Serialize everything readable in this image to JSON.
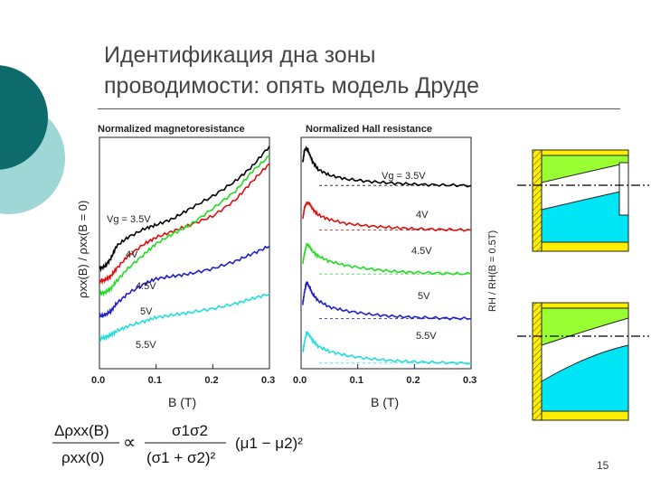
{
  "slide": {
    "title_line1": "Идентификация дна зоны",
    "title_line2": "проводимости: опять модель Друде",
    "page_number": "15"
  },
  "chart_data": [
    {
      "type": "line",
      "title": "Normalized magnetoresistance",
      "xlabel": "B (T)",
      "ylabel": "ρxx(B) / ρxx(B = 0)",
      "xlim": [
        0,
        0.3
      ],
      "xticks": [
        "0.0",
        "0.1",
        "0.2",
        "0.3"
      ],
      "series": [
        {
          "name": "Vg = 3.5V",
          "color": "#000000",
          "x": [
            0,
            0.01,
            0.02,
            0.03,
            0.05,
            0.08,
            0.1,
            0.13,
            0.16,
            0.2,
            0.24,
            0.27,
            0.3
          ],
          "y": [
            0.8,
            0.82,
            0.88,
            0.98,
            1.05,
            1.12,
            1.15,
            1.2,
            1.28,
            1.38,
            1.5,
            1.62,
            1.78
          ]
        },
        {
          "name": "4V",
          "color": "#e01010",
          "x": [
            0,
            0.01,
            0.02,
            0.03,
            0.05,
            0.08,
            0.1,
            0.13,
            0.16,
            0.2,
            0.24,
            0.27,
            0.3
          ],
          "y": [
            0.7,
            0.71,
            0.74,
            0.8,
            0.9,
            1.0,
            1.05,
            1.1,
            1.15,
            1.22,
            1.35,
            1.5,
            1.64
          ]
        },
        {
          "name": "4.5V",
          "color": "#22dd22",
          "x": [
            0,
            0.01,
            0.02,
            0.03,
            0.05,
            0.08,
            0.1,
            0.13,
            0.16,
            0.2,
            0.24,
            0.27,
            0.3
          ],
          "y": [
            0.6,
            0.61,
            0.64,
            0.7,
            0.8,
            0.92,
            1.0,
            1.08,
            1.15,
            1.28,
            1.42,
            1.58,
            1.7
          ]
        },
        {
          "name": "5V",
          "color": "#2020cc",
          "x": [
            0,
            0.01,
            0.02,
            0.03,
            0.05,
            0.08,
            0.1,
            0.13,
            0.16,
            0.2,
            0.24,
            0.27,
            0.3
          ],
          "y": [
            0.42,
            0.43,
            0.46,
            0.52,
            0.6,
            0.68,
            0.72,
            0.74,
            0.76,
            0.8,
            0.86,
            0.92,
            0.98
          ]
        },
        {
          "name": "5.5V",
          "color": "#22dddd",
          "x": [
            0,
            0.01,
            0.02,
            0.03,
            0.05,
            0.08,
            0.1,
            0.13,
            0.16,
            0.2,
            0.24,
            0.27,
            0.3
          ],
          "y": [
            0.24,
            0.25,
            0.27,
            0.3,
            0.34,
            0.38,
            0.41,
            0.43,
            0.45,
            0.48,
            0.52,
            0.56,
            0.6
          ]
        }
      ]
    },
    {
      "type": "line",
      "title": "Normalized Hall resistance",
      "xlabel": "B (T)",
      "ylabel": "RH / RH(B = 0.5T)",
      "xlim": [
        0,
        0.3
      ],
      "xticks": [
        "0.0",
        "0.1",
        "0.2",
        "0.3"
      ],
      "series": [
        {
          "name": "Vg = 3.5V",
          "color": "#000000",
          "x": [
            0.003,
            0.006,
            0.01,
            0.015,
            0.02,
            0.03,
            0.05,
            0.08,
            0.12,
            0.16,
            0.2,
            0.25,
            0.3
          ],
          "y": [
            0.6,
            0.9,
            0.95,
            0.8,
            0.62,
            0.42,
            0.28,
            0.18,
            0.12,
            0.08,
            0.05,
            0.03,
            0.02
          ]
        },
        {
          "name": "4V",
          "color": "#e01010",
          "x": [
            0.003,
            0.006,
            0.01,
            0.015,
            0.02,
            0.03,
            0.05,
            0.08,
            0.12,
            0.16,
            0.2,
            0.25,
            0.3
          ],
          "y": [
            0.3,
            0.58,
            0.7,
            0.68,
            0.55,
            0.4,
            0.28,
            0.18,
            0.12,
            0.08,
            0.05,
            0.03,
            0.02
          ]
        },
        {
          "name": "4.5V",
          "color": "#22dd22",
          "x": [
            0.003,
            0.006,
            0.01,
            0.015,
            0.02,
            0.03,
            0.05,
            0.08,
            0.12,
            0.16,
            0.2,
            0.25,
            0.3
          ],
          "y": [
            0.3,
            0.55,
            0.78,
            0.72,
            0.6,
            0.48,
            0.35,
            0.24,
            0.16,
            0.1,
            0.07,
            0.05,
            0.03
          ]
        },
        {
          "name": "5V",
          "color": "#2020cc",
          "x": [
            0.003,
            0.006,
            0.01,
            0.015,
            0.02,
            0.03,
            0.05,
            0.08,
            0.12,
            0.16,
            0.2,
            0.25,
            0.3
          ],
          "y": [
            0.4,
            0.7,
            0.95,
            0.8,
            0.65,
            0.48,
            0.32,
            0.22,
            0.14,
            0.09,
            0.06,
            0.04,
            0.03
          ]
        },
        {
          "name": "5.5V",
          "color": "#22dddd",
          "x": [
            0.003,
            0.006,
            0.01,
            0.015,
            0.02,
            0.03,
            0.05,
            0.08,
            0.12,
            0.16,
            0.2,
            0.25,
            0.3
          ],
          "y": [
            0.3,
            0.55,
            0.8,
            0.72,
            0.6,
            0.45,
            0.32,
            0.22,
            0.14,
            0.09,
            0.06,
            0.04,
            0.03
          ]
        }
      ]
    }
  ],
  "formula": {
    "lhs_num": "Δρxx(B)",
    "lhs_den": "ρxx(0)",
    "prop": "∝",
    "rhs_num": "σ1σ2",
    "rhs_den": "(σ1 + σ2)²",
    "rhs_mu": "(μ1 − μ2)²"
  },
  "colors": {
    "teal_dark": "#0d6b6b",
    "teal_light": "#9fd6d6",
    "band_green": "#99ff33",
    "band_cyan": "#00e5f5",
    "wall_yellow": "#ffee00"
  }
}
